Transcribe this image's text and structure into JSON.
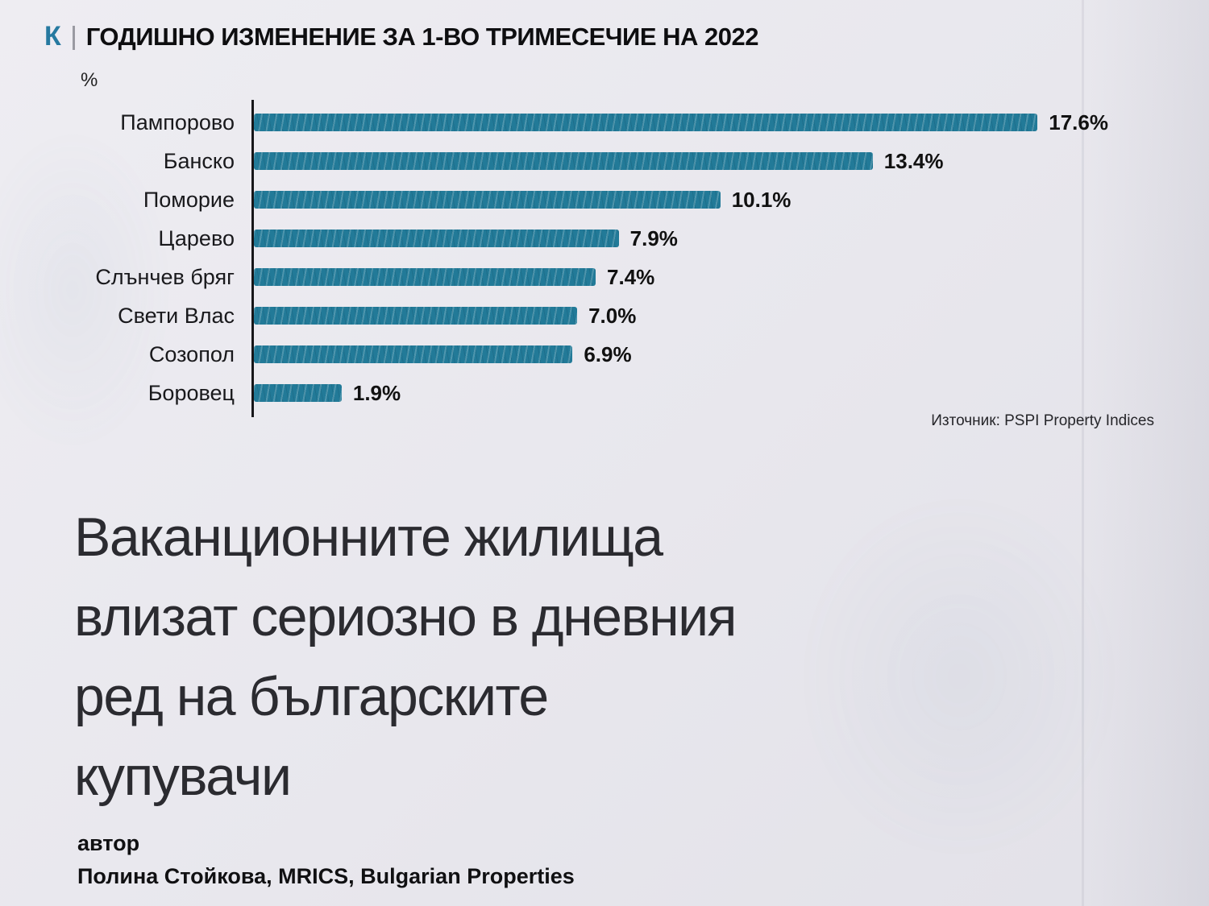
{
  "page": {
    "kicker_logo": "К",
    "title": "ГОДИШНО ИЗМЕНЕНИЕ ЗА 1-ВО ТРИМЕСЕЧИЕ НА 2022",
    "unit_label": "%",
    "source": "Източник: PSPI Property Indices",
    "headline_lines": [
      "Ваканционните жилища",
      "влизат сериозно в дневния",
      "ред на българските",
      "купувачи"
    ],
    "author_label": "автор",
    "author_name": "Полина Стойкова, MRICS, Bulgarian Properties",
    "accent_color": "#2679a0"
  },
  "chart_data": {
    "type": "bar",
    "orientation": "horizontal",
    "title": "ГОДИШНО ИЗМЕНЕНИЕ ЗА 1-ВО ТРИМЕСЕЧИЕ НА 2022",
    "categories": [
      "Пампорово",
      "Банско",
      "Поморие",
      "Царево",
      "Слънчев бряг",
      "Свети Влас",
      "Созопол",
      "Боровец"
    ],
    "values": [
      17.6,
      13.4,
      10.1,
      7.9,
      7.4,
      7.0,
      6.9,
      1.9
    ],
    "value_labels": [
      "17.6%",
      "13.4%",
      "10.1%",
      "7.9%",
      "7.4%",
      "7.0%",
      "6.9%",
      "1.9%"
    ],
    "xlabel": "",
    "ylabel": "%",
    "xlim": [
      0,
      18.5
    ],
    "grid": false,
    "legend": false,
    "bar_color": "#227a98",
    "source": "Източник: PSPI Property Indices"
  }
}
